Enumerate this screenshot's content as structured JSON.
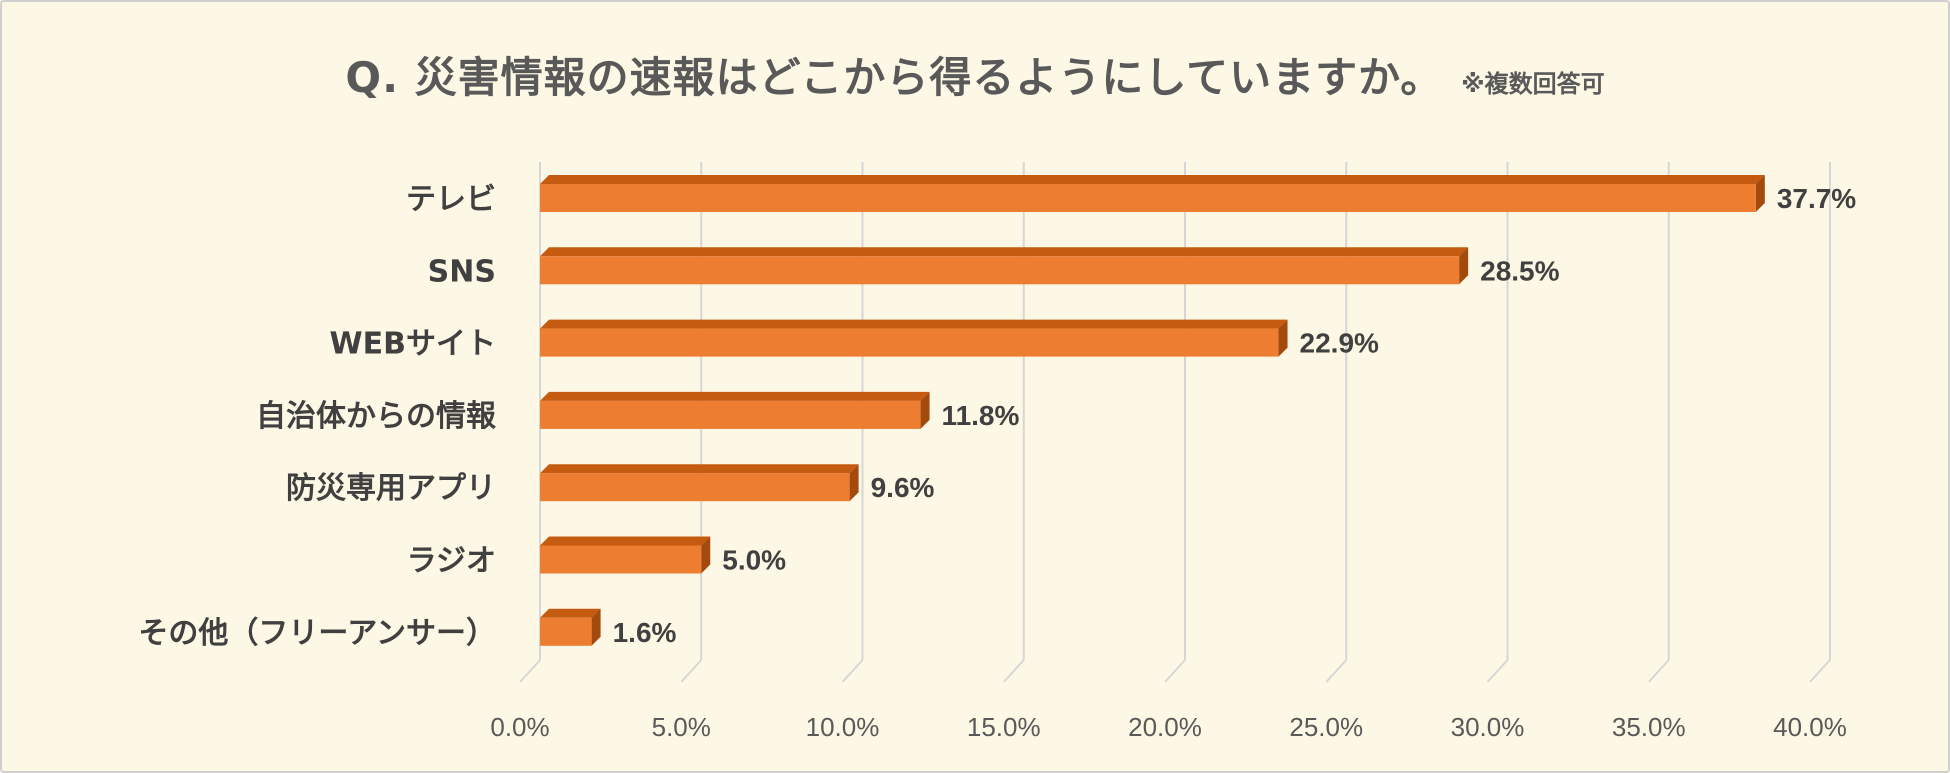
{
  "title": {
    "main": "Q. 災害情報の速報はどこから得るようにしていますか。",
    "note": "※複数回答可"
  },
  "colors": {
    "background": "#fdf8e5",
    "bar_front": "#ed7d31",
    "bar_top": "#c55a11",
    "bar_side": "#a34a0e",
    "grid": "#d6d6d6",
    "text": "#404040"
  },
  "chart_data": {
    "type": "bar",
    "orientation": "horizontal",
    "style": "3d",
    "title": "Q. 災害情報の速報はどこから得るようにしていますか。",
    "subtitle": "※複数回答可",
    "categories": [
      "テレビ",
      "SNS",
      "WEBサイト",
      "自治体からの情報",
      "防災専用アプリ",
      "ラジオ",
      "その他（フリーアンサー）"
    ],
    "values": [
      37.7,
      28.5,
      22.9,
      11.8,
      9.6,
      5.0,
      1.6
    ],
    "value_labels": [
      "37.7%",
      "28.5%",
      "22.9%",
      "11.8%",
      "9.6%",
      "5.0%",
      "1.6%"
    ],
    "xlim": [
      0,
      40
    ],
    "ticks": [
      0,
      5,
      10,
      15,
      20,
      25,
      30,
      35,
      40
    ],
    "tick_labels": [
      "0.0%",
      "5.0%",
      "10.0%",
      "15.0%",
      "20.0%",
      "25.0%",
      "30.0%",
      "35.0%",
      "40.0%"
    ],
    "xlabel": "",
    "ylabel": "",
    "grid": true,
    "legend": "none"
  }
}
